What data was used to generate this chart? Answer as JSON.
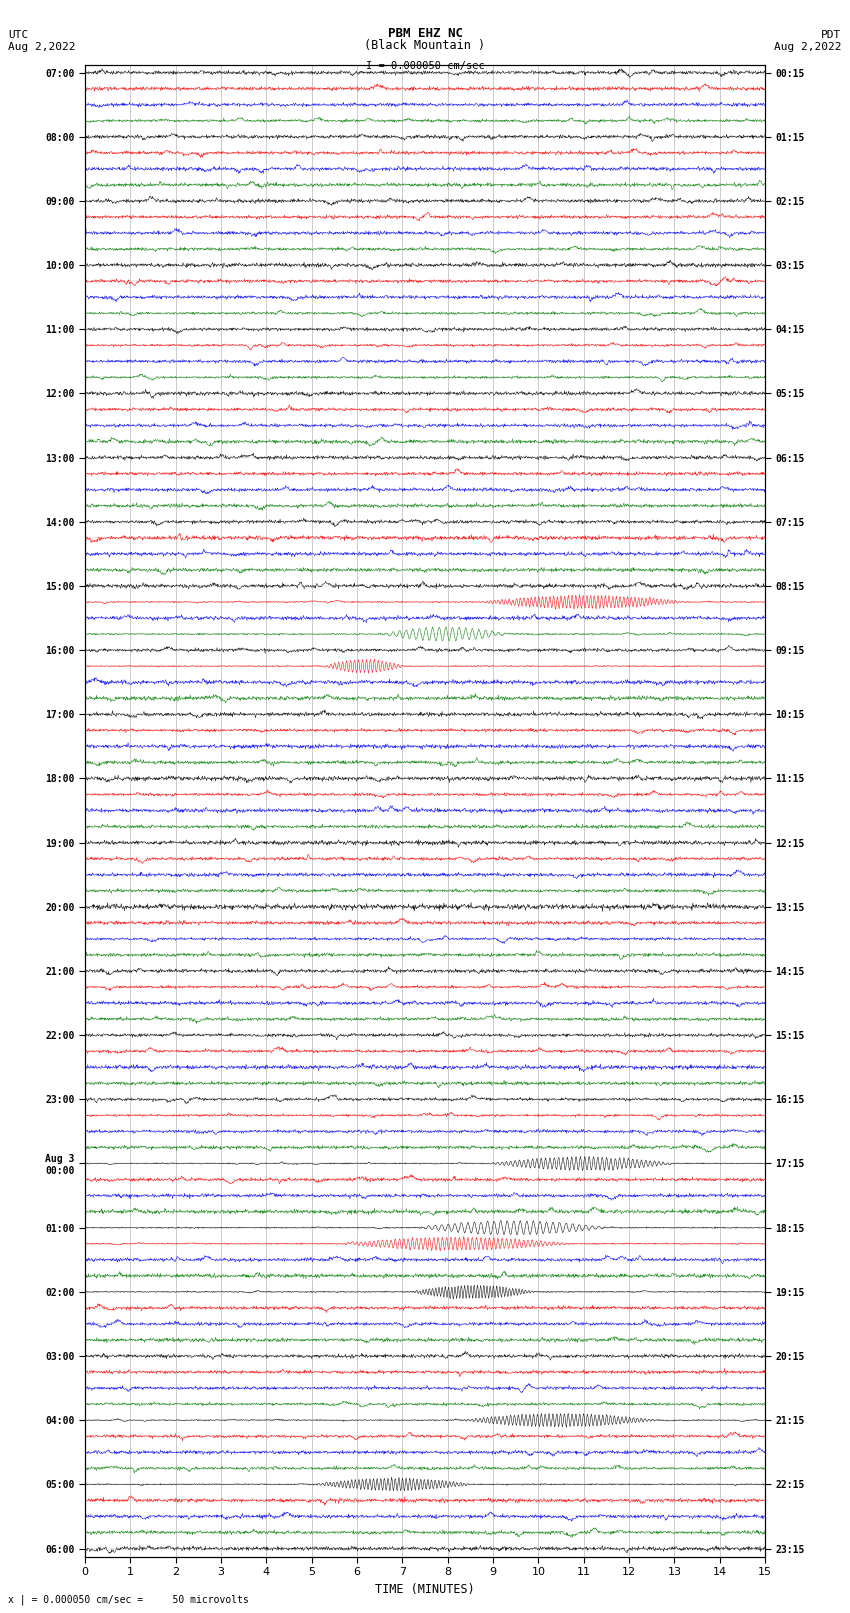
{
  "title_line1": "PBM EHZ NC",
  "title_line2": "(Black Mountain )",
  "scale_label": "I = 0.000050 cm/sec",
  "scale_bar_half": 0.3,
  "left_header": "UTC",
  "left_date": "Aug 2,2022",
  "right_header": "PDT",
  "right_date": "Aug 2,2022",
  "bottom_note": "x | = 0.000050 cm/sec =     50 microvolts",
  "xlabel": "TIME (MINUTES)",
  "x_ticks": [
    0,
    1,
    2,
    3,
    4,
    5,
    6,
    7,
    8,
    9,
    10,
    11,
    12,
    13,
    14,
    15
  ],
  "utc_labels": [
    "07:00",
    "",
    "",
    "",
    "08:00",
    "",
    "",
    "",
    "09:00",
    "",
    "",
    "",
    "10:00",
    "",
    "",
    "",
    "11:00",
    "",
    "",
    "",
    "12:00",
    "",
    "",
    "",
    "13:00",
    "",
    "",
    "",
    "14:00",
    "",
    "",
    "",
    "15:00",
    "",
    "",
    "",
    "16:00",
    "",
    "",
    "",
    "17:00",
    "",
    "",
    "",
    "18:00",
    "",
    "",
    "",
    "19:00",
    "",
    "",
    "",
    "20:00",
    "",
    "",
    "",
    "21:00",
    "",
    "",
    "",
    "22:00",
    "",
    "",
    "",
    "23:00",
    "",
    "",
    "",
    "Aug 3\n00:00",
    "",
    "",
    "",
    "01:00",
    "",
    "",
    "",
    "02:00",
    "",
    "",
    "",
    "03:00",
    "",
    "",
    "",
    "04:00",
    "",
    "",
    "",
    "05:00",
    "",
    "",
    "",
    "06:00",
    "",
    "",
    "",
    ""
  ],
  "pdt_labels": [
    "00:15",
    "",
    "",
    "",
    "01:15",
    "",
    "",
    "",
    "02:15",
    "",
    "",
    "",
    "03:15",
    "",
    "",
    "",
    "04:15",
    "",
    "",
    "",
    "05:15",
    "",
    "",
    "",
    "06:15",
    "",
    "",
    "",
    "07:15",
    "",
    "",
    "",
    "08:15",
    "",
    "",
    "",
    "09:15",
    "",
    "",
    "",
    "10:15",
    "",
    "",
    "",
    "11:15",
    "",
    "",
    "",
    "12:15",
    "",
    "",
    "",
    "13:15",
    "",
    "",
    "",
    "14:15",
    "",
    "",
    "",
    "15:15",
    "",
    "",
    "",
    "16:15",
    "",
    "",
    "",
    "17:15",
    "",
    "",
    "",
    "18:15",
    "",
    "",
    "",
    "19:15",
    "",
    "",
    "",
    "20:15",
    "",
    "",
    "",
    "21:15",
    "",
    "",
    "",
    "22:15",
    "",
    "",
    "",
    "23:15",
    "",
    "",
    "",
    ""
  ],
  "row_colors": [
    "black",
    "red",
    "blue",
    "green"
  ],
  "n_rows": 93,
  "background_color": "white",
  "grid_color": "#999999",
  "noise_scale": 0.018,
  "big_signal_rows": [
    33,
    35,
    37,
    68,
    72,
    73,
    76,
    84,
    88
  ],
  "big_signal_amps": [
    0.38,
    0.32,
    0.42,
    0.45,
    0.42,
    0.38,
    0.44,
    0.42,
    0.38
  ]
}
